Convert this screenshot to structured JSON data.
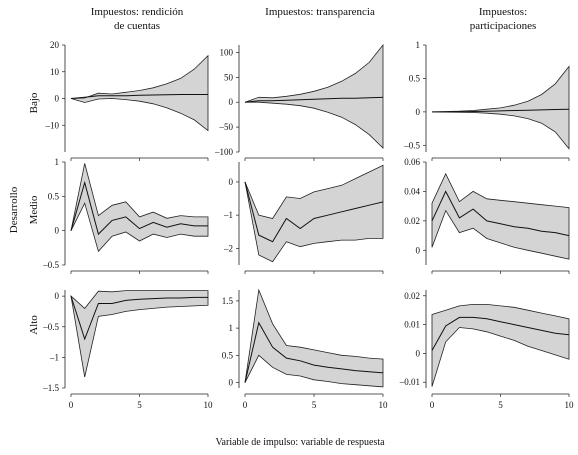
{
  "column_titles": [
    [
      "Impuestos: rendición",
      "de cuentas"
    ],
    [
      "Impuestos: transparencia"
    ],
    [
      "Impuestos:",
      "participaciones"
    ]
  ],
  "row_labels": [
    [
      "Bajo"
    ],
    [
      "Desarrollo",
      "Medio"
    ],
    [
      "Alto"
    ]
  ],
  "footer": "Variable de impulso: variable de respuesta",
  "colors": {
    "band": "#d4d4d4",
    "line": "#111111"
  },
  "chart_data": [
    {
      "type": "area",
      "row": "Bajo",
      "column": "Impuestos: rendición de cuentas",
      "x": [
        0,
        1,
        2,
        3,
        4,
        5,
        6,
        7,
        8,
        9,
        10
      ],
      "ylim": [
        -20,
        20
      ],
      "yticks": [
        -10,
        0,
        10,
        20
      ],
      "yticklabels": [
        "–10",
        "0",
        "10",
        "20"
      ],
      "xticks": [
        0,
        5,
        10
      ],
      "xticklabels": [],
      "series": [
        {
          "values": [
            0,
            0.5,
            1,
            1,
            1,
            1.2,
            1.3,
            1.4,
            1.5,
            1.5,
            1.5
          ]
        },
        {
          "values": [
            0,
            0.2,
            2,
            1.7,
            2.3,
            3,
            4,
            5.5,
            7.5,
            11,
            16
          ]
        },
        {
          "values": [
            0,
            -1.5,
            -0.2,
            0,
            -0.4,
            -1,
            -2,
            -3.5,
            -5.5,
            -8,
            -12
          ]
        }
      ]
    },
    {
      "type": "area",
      "row": "Bajo",
      "column": "Impuestos: transparencia",
      "x": [
        0,
        1,
        2,
        3,
        4,
        5,
        6,
        7,
        8,
        9,
        10
      ],
      "ylim": [
        -100,
        115
      ],
      "yticks": [
        -100,
        -50,
        0,
        50,
        100
      ],
      "yticklabels": [
        "–100",
        "–50",
        "0",
        "50",
        "100"
      ],
      "xticks": [
        0,
        5,
        10
      ],
      "xticklabels": [],
      "series": [
        {
          "values": [
            0,
            3,
            3,
            4,
            5,
            6,
            7,
            8,
            8,
            9,
            10
          ]
        },
        {
          "values": [
            0,
            10,
            9,
            12,
            16,
            22,
            30,
            42,
            58,
            80,
            115
          ]
        },
        {
          "values": [
            0,
            0,
            -2,
            -4,
            -7,
            -12,
            -20,
            -30,
            -45,
            -65,
            -92
          ]
        }
      ]
    },
    {
      "type": "area",
      "row": "Bajo",
      "column": "Impuestos: participaciones",
      "x": [
        0,
        1,
        2,
        3,
        4,
        5,
        6,
        7,
        8,
        9,
        10
      ],
      "ylim": [
        -0.6,
        1
      ],
      "yticks": [
        -0.5,
        0,
        0.5,
        1
      ],
      "yticklabels": [
        "–0.5",
        "0",
        "0.5",
        "1"
      ],
      "xticks": [
        0,
        5,
        10
      ],
      "xticklabels": [],
      "series": [
        {
          "values": [
            0,
            0,
            0,
            0.005,
            0.01,
            0.015,
            0.02,
            0.025,
            0.03,
            0.035,
            0.04
          ]
        },
        {
          "values": [
            0,
            0.005,
            0.01,
            0.02,
            0.04,
            0.06,
            0.1,
            0.16,
            0.26,
            0.42,
            0.68
          ]
        },
        {
          "values": [
            0,
            -0.003,
            -0.005,
            -0.01,
            -0.02,
            -0.035,
            -0.06,
            -0.1,
            -0.17,
            -0.3,
            -0.55
          ]
        }
      ]
    },
    {
      "type": "area",
      "row": "Medio",
      "column": "Impuestos: rendición de cuentas",
      "x": [
        0,
        1,
        2,
        3,
        4,
        5,
        6,
        7,
        8,
        9,
        10
      ],
      "ylim": [
        -0.5,
        1
      ],
      "yticks": [
        -0.5,
        0,
        0.5,
        1
      ],
      "yticklabels": [
        "–0.5",
        "0",
        "0.5",
        "1"
      ],
      "xticks": [
        0,
        5,
        10
      ],
      "xticklabels": [],
      "series": [
        {
          "values": [
            0,
            0.7,
            -0.05,
            0.15,
            0.2,
            0.03,
            0.12,
            0.05,
            0.1,
            0.07,
            0.07
          ]
        },
        {
          "values": [
            0,
            0.98,
            0.22,
            0.37,
            0.42,
            0.2,
            0.27,
            0.18,
            0.22,
            0.2,
            0.2
          ]
        },
        {
          "values": [
            0,
            0.4,
            -0.3,
            -0.08,
            -0.02,
            -0.15,
            -0.05,
            -0.1,
            -0.05,
            -0.08,
            -0.08
          ]
        }
      ]
    },
    {
      "type": "area",
      "row": "Medio",
      "column": "Impuestos: transparencia",
      "x": [
        0,
        1,
        2,
        3,
        4,
        5,
        6,
        7,
        8,
        9,
        10
      ],
      "ylim": [
        -2.5,
        0.6
      ],
      "yticks": [
        -2,
        -1,
        0
      ],
      "yticklabels": [
        "–2",
        "–1",
        "0"
      ],
      "xticks": [
        0,
        5,
        10
      ],
      "xticklabels": [],
      "series": [
        {
          "values": [
            0,
            -1.6,
            -1.8,
            -1.1,
            -1.4,
            -1.1,
            -1.0,
            -0.9,
            -0.8,
            -0.7,
            -0.6
          ]
        },
        {
          "values": [
            0,
            -1.0,
            -1.1,
            -0.45,
            -0.5,
            -0.3,
            -0.2,
            -0.1,
            0.1,
            0.3,
            0.5
          ]
        },
        {
          "values": [
            0,
            -2.2,
            -2.4,
            -1.8,
            -1.95,
            -1.85,
            -1.8,
            -1.75,
            -1.75,
            -1.7,
            -1.7
          ]
        }
      ]
    },
    {
      "type": "area",
      "row": "Medio",
      "column": "Impuestos: participaciones",
      "x": [
        0,
        1,
        2,
        3,
        4,
        5,
        6,
        7,
        8,
        9,
        10
      ],
      "ylim": [
        -0.01,
        0.06
      ],
      "yticks": [
        0,
        0.02,
        0.04,
        0.06
      ],
      "yticklabels": [
        "0",
        "0.02",
        "0.04",
        "0.06"
      ],
      "xticks": [
        0,
        5,
        10
      ],
      "xticklabels": [],
      "series": [
        {
          "values": [
            0.02,
            0.04,
            0.022,
            0.028,
            0.02,
            0.018,
            0.016,
            0.015,
            0.013,
            0.012,
            0.01
          ]
        },
        {
          "values": [
            0.032,
            0.052,
            0.033,
            0.04,
            0.035,
            0.034,
            0.033,
            0.032,
            0.031,
            0.03,
            0.029
          ]
        },
        {
          "values": [
            0.002,
            0.027,
            0.012,
            0.015,
            0.008,
            0.005,
            0.002,
            0,
            -0.002,
            -0.004,
            -0.006
          ]
        }
      ]
    },
    {
      "type": "area",
      "row": "Alto",
      "column": "Impuestos: rendición de cuentas",
      "x": [
        0,
        1,
        2,
        3,
        4,
        5,
        6,
        7,
        8,
        9,
        10
      ],
      "ylim": [
        -1.5,
        0.1
      ],
      "yticks": [
        -1.5,
        -1,
        -0.5,
        0
      ],
      "yticklabels": [
        "–1.5",
        "–1",
        "–0.5",
        "0"
      ],
      "xticks": [
        0,
        5,
        10
      ],
      "xticklabels": [
        "0",
        "5",
        "10"
      ],
      "series": [
        {
          "values": [
            0,
            -0.7,
            -0.12,
            -0.12,
            -0.07,
            -0.05,
            -0.04,
            -0.03,
            -0.03,
            -0.02,
            -0.02
          ]
        },
        {
          "values": [
            0,
            -0.2,
            0.08,
            0.07,
            0.09,
            0.09,
            0.09,
            0.09,
            0.09,
            0.09,
            0.09
          ]
        },
        {
          "values": [
            0,
            -1.32,
            -0.33,
            -0.3,
            -0.25,
            -0.22,
            -0.2,
            -0.18,
            -0.17,
            -0.16,
            -0.15
          ]
        }
      ]
    },
    {
      "type": "area",
      "row": "Alto",
      "column": "Impuestos: transparencia",
      "x": [
        0,
        1,
        2,
        3,
        4,
        5,
        6,
        7,
        8,
        9,
        10
      ],
      "ylim": [
        -0.1,
        1.7
      ],
      "yticks": [
        0,
        0.5,
        1,
        1.5
      ],
      "yticklabels": [
        "0",
        "0.5",
        "1",
        "1.5"
      ],
      "xticks": [
        0,
        5,
        10
      ],
      "xticklabels": [
        "0",
        "5",
        "10"
      ],
      "series": [
        {
          "values": [
            0,
            1.1,
            0.65,
            0.45,
            0.4,
            0.32,
            0.28,
            0.25,
            0.22,
            0.2,
            0.18
          ]
        },
        {
          "values": [
            0,
            1.7,
            1.08,
            0.68,
            0.65,
            0.6,
            0.55,
            0.5,
            0.48,
            0.45,
            0.43
          ]
        },
        {
          "values": [
            0,
            0.5,
            0.28,
            0.15,
            0.12,
            0.05,
            0.02,
            -0.02,
            -0.04,
            -0.06,
            -0.08
          ]
        }
      ]
    },
    {
      "type": "area",
      "row": "Alto",
      "column": "Impuestos: participaciones",
      "x": [
        0,
        1,
        2,
        3,
        4,
        5,
        6,
        7,
        8,
        9,
        10
      ],
      "ylim": [
        -0.012,
        0.022
      ],
      "yticks": [
        -0.01,
        0,
        0.01,
        0.02
      ],
      "yticklabels": [
        "–0.01",
        "0",
        "0.01",
        "0.02"
      ],
      "xticks": [
        0,
        5,
        10
      ],
      "xticklabels": [
        "0",
        "5",
        "10"
      ],
      "series": [
        {
          "values": [
            0.001,
            0.0095,
            0.0125,
            0.0125,
            0.012,
            0.011,
            0.01,
            0.009,
            0.008,
            0.007,
            0.0065
          ]
        },
        {
          "values": [
            0.0135,
            0.015,
            0.0165,
            0.017,
            0.017,
            0.0165,
            0.016,
            0.015,
            0.014,
            0.013,
            0.012
          ]
        },
        {
          "values": [
            -0.0115,
            0.004,
            0.009,
            0.0085,
            0.0075,
            0.006,
            0.0045,
            0.0025,
            0.001,
            -0.0005,
            -0.002
          ]
        }
      ]
    }
  ]
}
